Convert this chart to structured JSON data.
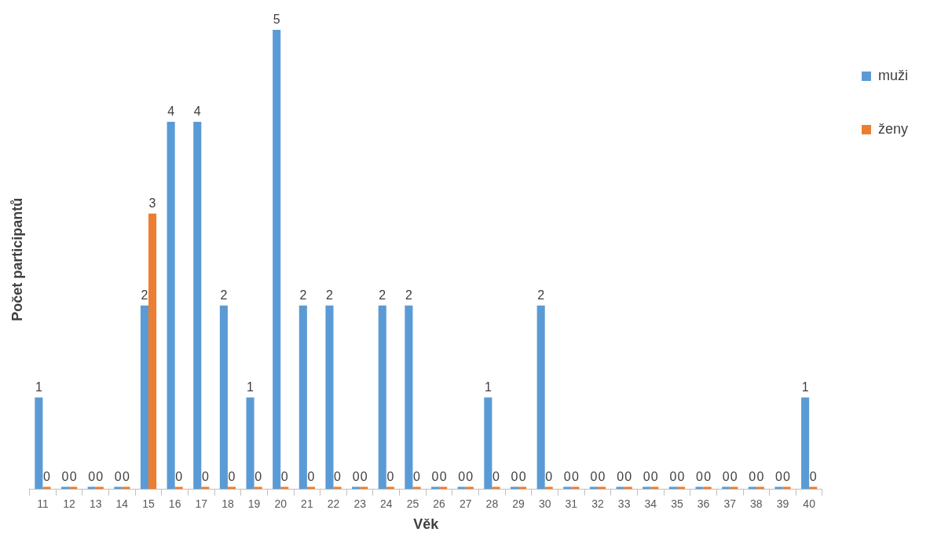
{
  "chart_data": {
    "type": "bar",
    "xlabel": "Věk",
    "ylabel": "Počet participantů",
    "categories": [
      "11",
      "12",
      "13",
      "14",
      "15",
      "16",
      "17",
      "18",
      "19",
      "20",
      "21",
      "22",
      "23",
      "24",
      "25",
      "26",
      "27",
      "28",
      "29",
      "30",
      "31",
      "32",
      "33",
      "34",
      "35",
      "36",
      "37",
      "38",
      "39",
      "40"
    ],
    "series": [
      {
        "name": "muži",
        "color": "#5b9bd5",
        "values": [
          1,
          0,
          0,
          0,
          2,
          4,
          4,
          2,
          1,
          5,
          2,
          2,
          0,
          2,
          2,
          0,
          0,
          1,
          0,
          2,
          0,
          0,
          0,
          0,
          0,
          0,
          0,
          0,
          0,
          1
        ]
      },
      {
        "name": "ženy",
        "color": "#ed7d31",
        "values": [
          0,
          0,
          0,
          0,
          3,
          0,
          0,
          0,
          0,
          0,
          0,
          0,
          0,
          0,
          0,
          0,
          0,
          0,
          0,
          0,
          0,
          0,
          0,
          0,
          0,
          0,
          0,
          0,
          0,
          0
        ]
      }
    ],
    "ylim": [
      0,
      5
    ],
    "tick_labels": "x",
    "data_labels": true,
    "legend": "top right",
    "grid": false
  }
}
